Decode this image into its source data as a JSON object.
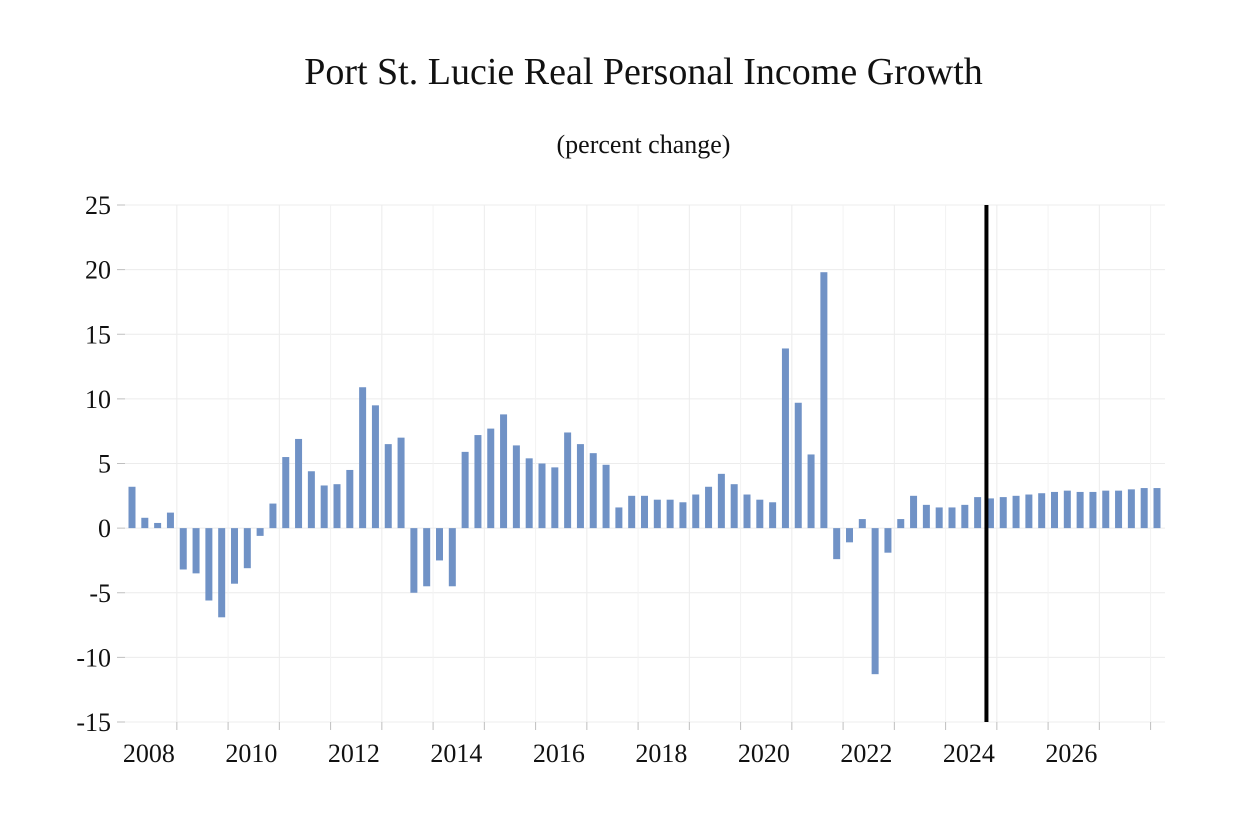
{
  "chart_data": {
    "type": "bar",
    "title": "Port St. Lucie Real Personal Income Growth",
    "subtitle": "(percent change)",
    "xlabel": "",
    "ylabel": "",
    "ylim": [
      -15,
      25
    ],
    "yticks": [
      25,
      20,
      15,
      10,
      5,
      0,
      -5,
      -10,
      -15
    ],
    "ytick_labels": [
      "25",
      "20",
      "15",
      "10",
      "5",
      "0",
      "-5",
      "-10",
      "-15"
    ],
    "x_start": 2007.0,
    "x_end": 2027.25,
    "x_step": 0.25,
    "xtick_years": [
      2008,
      2010,
      2012,
      2014,
      2016,
      2018,
      2020,
      2022,
      2024,
      2026
    ],
    "xtick_labels": [
      "2008",
      "2010",
      "2012",
      "2014",
      "2016",
      "2018",
      "2020",
      "2022",
      "2024",
      "2026"
    ],
    "forecast_line_x": 2023.75,
    "bar_color": "#7092c6",
    "forecast_line_color": "#000000",
    "grid": true,
    "values": [
      3.2,
      0.8,
      0.4,
      1.2,
      -3.2,
      -3.5,
      -5.6,
      -6.9,
      -4.3,
      -3.1,
      -0.6,
      1.9,
      5.5,
      6.9,
      4.4,
      3.3,
      3.4,
      4.5,
      10.9,
      9.5,
      6.5,
      7.0,
      -5.0,
      -4.5,
      -2.5,
      -4.5,
      5.9,
      7.2,
      7.7,
      8.8,
      6.4,
      5.4,
      5.0,
      4.7,
      7.4,
      6.5,
      5.8,
      4.9,
      1.6,
      2.5,
      2.5,
      2.2,
      2.2,
      2.0,
      2.6,
      3.2,
      4.2,
      3.4,
      2.6,
      2.2,
      2.0,
      13.9,
      9.7,
      5.7,
      19.8,
      -2.4,
      -1.1,
      0.7,
      -11.3,
      -1.9,
      0.7,
      2.5,
      1.8,
      1.6,
      1.6,
      1.8,
      2.4,
      2.3,
      2.4,
      2.5,
      2.6,
      2.7,
      2.8,
      2.9,
      2.8,
      2.8,
      2.9,
      2.9,
      3.0,
      3.1,
      3.1
    ]
  }
}
